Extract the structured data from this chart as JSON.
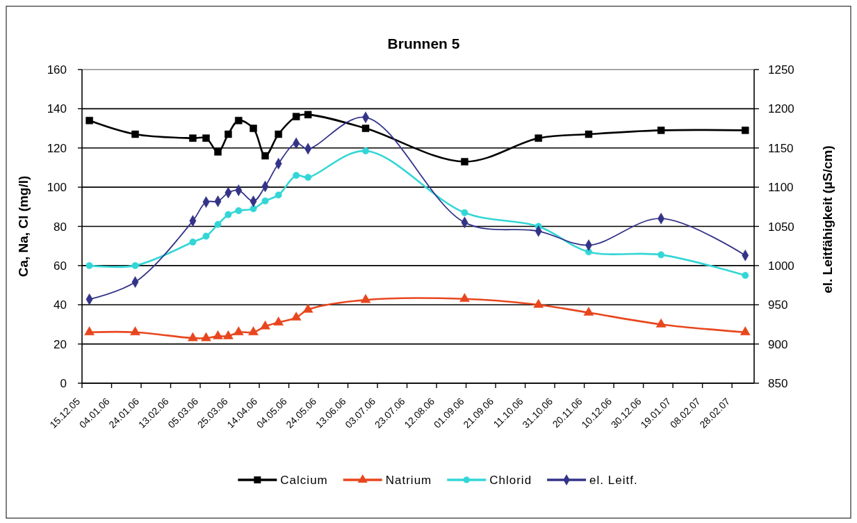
{
  "chart_data": {
    "type": "line",
    "title": "Brunnen 5",
    "ylabel": "Ca, Na, Cl (mg/l)",
    "y2label": "el. Leitfähigkeit (µS/cm)",
    "x": [
      "2005-12-20",
      "2006-01-20",
      "2006-02-28",
      "2006-03-09",
      "2006-03-17",
      "2006-03-24",
      "2006-03-31",
      "2006-04-10",
      "2006-04-18",
      "2006-04-27",
      "2006-05-09",
      "2006-05-17",
      "2006-06-25",
      "2006-08-31",
      "2006-10-20",
      "2006-11-23",
      "2007-01-11",
      "2007-03-09"
    ],
    "series": [
      {
        "name": "Calcium",
        "color": "#000000",
        "marker": "square",
        "values": [
          134,
          127,
          125,
          125,
          118,
          127,
          134,
          130,
          116,
          127,
          136,
          137,
          130,
          113,
          125,
          127,
          129,
          129
        ]
      },
      {
        "name": "Natrium",
        "color": "#e8461e",
        "marker": "triangle",
        "values": [
          26,
          26,
          23,
          23,
          24,
          24,
          26,
          26,
          29,
          31,
          33.5,
          37.5,
          42.5,
          43,
          40,
          36,
          30,
          26
        ]
      },
      {
        "name": "Chlorid",
        "color": "#33d6d6",
        "marker": "circle",
        "values": [
          60,
          60,
          72,
          75,
          81,
          86,
          88,
          89,
          93,
          96,
          106,
          105,
          118.5,
          87,
          80,
          67,
          65.5,
          55
        ]
      },
      {
        "name": "el. Leitf.",
        "color": "#333388",
        "marker": "diamond",
        "axis": "y2",
        "values": [
          957,
          979,
          1057,
          1081,
          1082,
          1093,
          1096,
          1082,
          1101,
          1130,
          1156,
          1149,
          1189,
          1055,
          1044,
          1026,
          1060,
          1013
        ]
      }
    ],
    "xlim": [
      "2005-12-15",
      "2007-03-15"
    ],
    "xticks": [
      {
        "value": "2005-12-15",
        "label": "15.12.05"
      },
      {
        "value": "2006-01-04",
        "label": "04.01.06"
      },
      {
        "value": "2006-01-24",
        "label": "24.01.06"
      },
      {
        "value": "2006-02-13",
        "label": "13.02.06"
      },
      {
        "value": "2006-03-05",
        "label": "05.03.06"
      },
      {
        "value": "2006-03-25",
        "label": "25.03.06"
      },
      {
        "value": "2006-04-14",
        "label": "14.04.06"
      },
      {
        "value": "2006-05-04",
        "label": "04.05.06"
      },
      {
        "value": "2006-05-24",
        "label": "24.05.06"
      },
      {
        "value": "2006-06-13",
        "label": "13.06.06"
      },
      {
        "value": "2006-07-03",
        "label": "03.07.06"
      },
      {
        "value": "2006-07-23",
        "label": "23.07.06"
      },
      {
        "value": "2006-08-12",
        "label": "12.08.06"
      },
      {
        "value": "2006-09-01",
        "label": "01.09.06"
      },
      {
        "value": "2006-09-21",
        "label": "21.09.06"
      },
      {
        "value": "2006-10-11",
        "label": "11.10.06"
      },
      {
        "value": "2006-10-31",
        "label": "31.10.06"
      },
      {
        "value": "2006-11-20",
        "label": "20.11.06"
      },
      {
        "value": "2006-12-10",
        "label": "10.12.06"
      },
      {
        "value": "2006-12-30",
        "label": "30.12.06"
      },
      {
        "value": "2007-01-19",
        "label": "19.01.07"
      },
      {
        "value": "2007-02-08",
        "label": "08.02.07"
      },
      {
        "value": "2007-02-28",
        "label": "28.02.07"
      }
    ],
    "ylim": [
      0,
      160
    ],
    "yticks": [
      0,
      20,
      40,
      60,
      80,
      100,
      120,
      140,
      160
    ],
    "y2lim": [
      850,
      1250
    ],
    "y2ticks": [
      850,
      900,
      950,
      1000,
      1050,
      1100,
      1150,
      1200,
      1250
    ],
    "grid": "y",
    "legend": "bottom"
  }
}
